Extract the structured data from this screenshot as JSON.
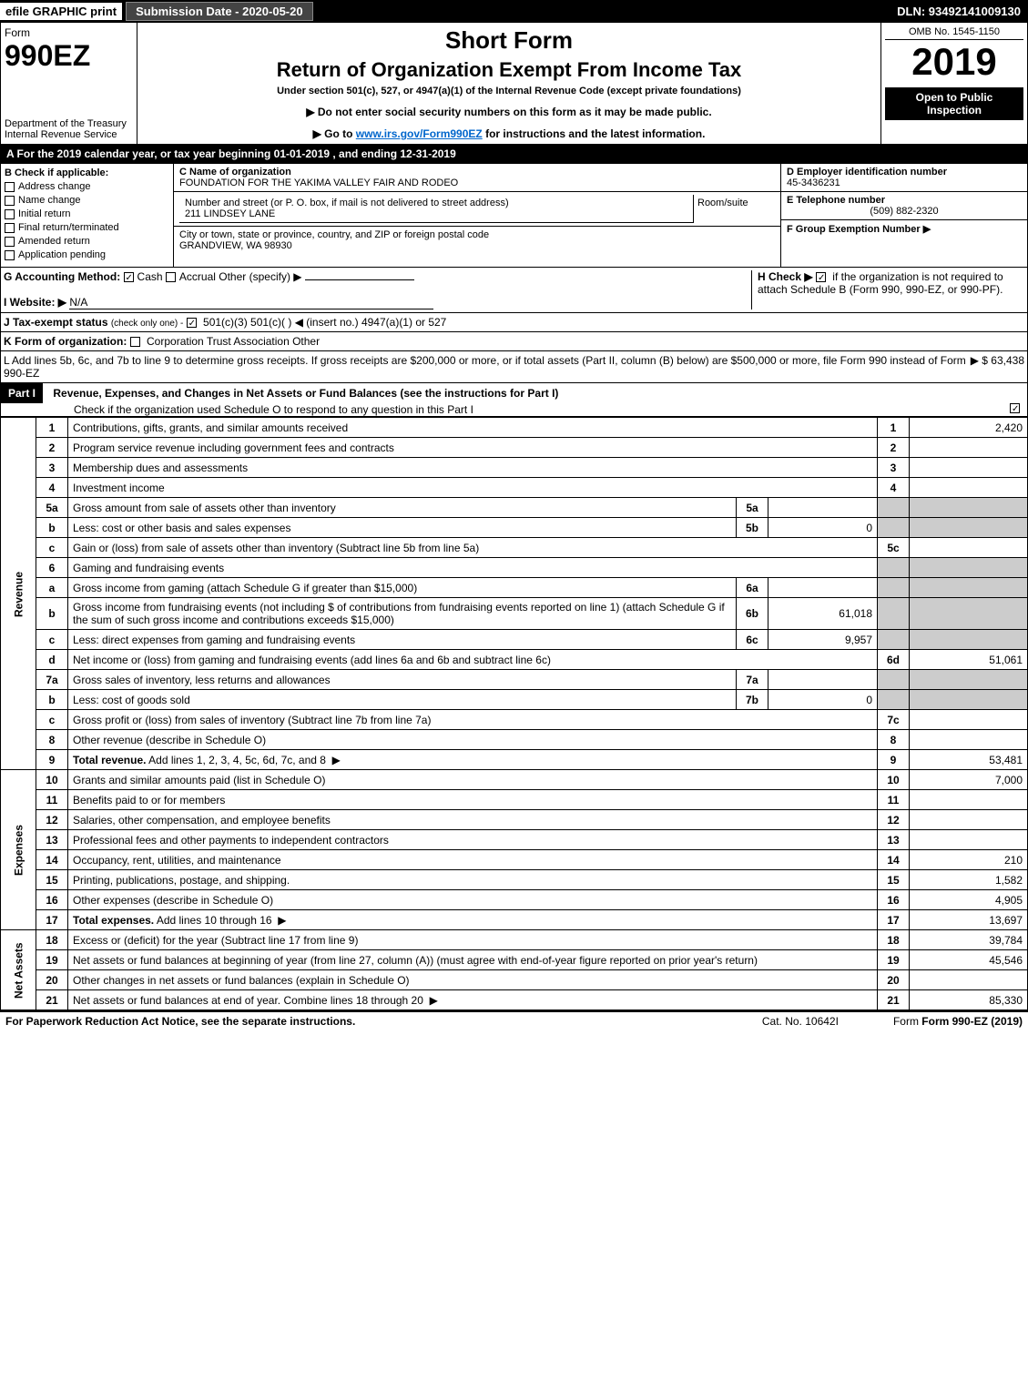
{
  "topbar": {
    "efile": "efile GRAPHIC print",
    "submission": "Submission Date - 2020-05-20",
    "dln": "DLN: 93492141009130"
  },
  "header": {
    "form_label": "Form",
    "form_number": "990EZ",
    "short_form": "Short Form",
    "return_title": "Return of Organization Exempt From Income Tax",
    "subtitle": "Under section 501(c), 527, or 4947(a)(1) of the Internal Revenue Code (except private foundations)",
    "notice1": "▶ Do not enter social security numbers on this form as it may be made public.",
    "notice2_pre": "▶ Go to ",
    "notice2_link": "www.irs.gov/Form990EZ",
    "notice2_post": " for instructions and the latest information.",
    "dept": "Department of the Treasury",
    "irs": "Internal Revenue Service",
    "omb": "OMB No. 1545-1150",
    "year": "2019",
    "open_public": "Open to Public Inspection"
  },
  "row_a": "A For the 2019 calendar year, or tax year beginning 01-01-2019 , and ending 12-31-2019",
  "col_b": {
    "header": "B Check if applicable:",
    "items": [
      "Address change",
      "Name change",
      "Initial return",
      "Final return/terminated",
      "Amended return",
      "Application pending"
    ]
  },
  "col_c": {
    "name_label": "C Name of organization",
    "org_name": "FOUNDATION FOR THE YAKIMA VALLEY FAIR AND RODEO",
    "street_label": "Number and street (or P. O. box, if mail is not delivered to street address)",
    "room_label": "Room/suite",
    "street": "211 LINDSEY LANE",
    "city_label": "City or town, state or province, country, and ZIP or foreign postal code",
    "city": "GRANDVIEW, WA  98930"
  },
  "col_d": {
    "ein_label": "D Employer identification number",
    "ein": "45-3436231",
    "phone_label": "E Telephone number",
    "phone": "(509) 882-2320",
    "group_label": "F Group Exemption Number ▶"
  },
  "lines": {
    "g": "G Accounting Method:",
    "g_cash": "Cash",
    "g_accrual": "Accrual",
    "g_other": "Other (specify) ▶",
    "h": "H Check ▶",
    "h_text": "if the organization is not required to attach Schedule B (Form 990, 990-EZ, or 990-PF).",
    "i": "I Website: ▶",
    "i_val": "N/A",
    "j": "J Tax-exempt status",
    "j_sub": "(check only one) -",
    "j_opts": "501(c)(3)    501(c)( )  ◀ (insert no.)    4947(a)(1) or    527",
    "k": "K Form of organization:",
    "k_opts": "Corporation    Trust    Association    Other",
    "l_pre": "L Add lines 5b, 6c, and 7b to line 9 to determine gross receipts. If gross receipts are $200,000 or more, or if total assets (Part II, column (B) below) are $500,000 or more, file Form 990 instead of Form 990-EZ",
    "l_amt": "▶ $ 63,438"
  },
  "part1": {
    "label": "Part I",
    "title": "Revenue, Expenses, and Changes in Net Assets or Fund Balances (see the instructions for Part I)",
    "check": "Check if the organization used Schedule O to respond to any question in this Part I"
  },
  "table": {
    "revenue_label": "Revenue",
    "expenses_label": "Expenses",
    "netassets_label": "Net Assets",
    "rows": [
      {
        "ln": "1",
        "desc": "Contributions, gifts, grants, and similar amounts received",
        "num": "1",
        "amt": "2,420"
      },
      {
        "ln": "2",
        "desc": "Program service revenue including government fees and contracts",
        "num": "2",
        "amt": ""
      },
      {
        "ln": "3",
        "desc": "Membership dues and assessments",
        "num": "3",
        "amt": ""
      },
      {
        "ln": "4",
        "desc": "Investment income",
        "num": "4",
        "amt": ""
      },
      {
        "ln": "5a",
        "desc": "Gross amount from sale of assets other than inventory",
        "inum": "5a",
        "iamt": ""
      },
      {
        "ln": "b",
        "desc": "Less: cost or other basis and sales expenses",
        "inum": "5b",
        "iamt": "0"
      },
      {
        "ln": "c",
        "desc": "Gain or (loss) from sale of assets other than inventory (Subtract line 5b from line 5a)",
        "num": "5c",
        "amt": ""
      },
      {
        "ln": "6",
        "desc": "Gaming and fundraising events"
      },
      {
        "ln": "a",
        "desc": "Gross income from gaming (attach Schedule G if greater than $15,000)",
        "inum": "6a",
        "iamt": ""
      },
      {
        "ln": "b",
        "desc": "Gross income from fundraising events (not including $                    of contributions from fundraising events reported on line 1) (attach Schedule G if the sum of such gross income and contributions exceeds $15,000)",
        "inum": "6b",
        "iamt": "61,018"
      },
      {
        "ln": "c",
        "desc": "Less: direct expenses from gaming and fundraising events",
        "inum": "6c",
        "iamt": "9,957"
      },
      {
        "ln": "d",
        "desc": "Net income or (loss) from gaming and fundraising events (add lines 6a and 6b and subtract line 6c)",
        "num": "6d",
        "amt": "51,061"
      },
      {
        "ln": "7a",
        "desc": "Gross sales of inventory, less returns and allowances",
        "inum": "7a",
        "iamt": ""
      },
      {
        "ln": "b",
        "desc": "Less: cost of goods sold",
        "inum": "7b",
        "iamt": "0"
      },
      {
        "ln": "c",
        "desc": "Gross profit or (loss) from sales of inventory (Subtract line 7b from line 7a)",
        "num": "7c",
        "amt": ""
      },
      {
        "ln": "8",
        "desc": "Other revenue (describe in Schedule O)",
        "num": "8",
        "amt": ""
      },
      {
        "ln": "9",
        "desc": "Total revenue. Add lines 1, 2, 3, 4, 5c, 6d, 7c, and 8",
        "num": "9",
        "amt": "53,481",
        "bold": true,
        "arrow": true
      }
    ],
    "exp_rows": [
      {
        "ln": "10",
        "desc": "Grants and similar amounts paid (list in Schedule O)",
        "num": "10",
        "amt": "7,000"
      },
      {
        "ln": "11",
        "desc": "Benefits paid to or for members",
        "num": "11",
        "amt": ""
      },
      {
        "ln": "12",
        "desc": "Salaries, other compensation, and employee benefits",
        "num": "12",
        "amt": ""
      },
      {
        "ln": "13",
        "desc": "Professional fees and other payments to independent contractors",
        "num": "13",
        "amt": ""
      },
      {
        "ln": "14",
        "desc": "Occupancy, rent, utilities, and maintenance",
        "num": "14",
        "amt": "210"
      },
      {
        "ln": "15",
        "desc": "Printing, publications, postage, and shipping.",
        "num": "15",
        "amt": "1,582"
      },
      {
        "ln": "16",
        "desc": "Other expenses (describe in Schedule O)",
        "num": "16",
        "amt": "4,905"
      },
      {
        "ln": "17",
        "desc": "Total expenses. Add lines 10 through 16",
        "num": "17",
        "amt": "13,697",
        "bold": true,
        "arrow": true
      }
    ],
    "net_rows": [
      {
        "ln": "18",
        "desc": "Excess or (deficit) for the year (Subtract line 17 from line 9)",
        "num": "18",
        "amt": "39,784"
      },
      {
        "ln": "19",
        "desc": "Net assets or fund balances at beginning of year (from line 27, column (A)) (must agree with end-of-year figure reported on prior year's return)",
        "num": "19",
        "amt": "45,546"
      },
      {
        "ln": "20",
        "desc": "Other changes in net assets or fund balances (explain in Schedule O)",
        "num": "20",
        "amt": ""
      },
      {
        "ln": "21",
        "desc": "Net assets or fund balances at end of year. Combine lines 18 through 20",
        "num": "21",
        "amt": "85,330",
        "arrow": true
      }
    ]
  },
  "footer": {
    "left": "For Paperwork Reduction Act Notice, see the separate instructions.",
    "mid": "Cat. No. 10642I",
    "right": "Form 990-EZ (2019)"
  }
}
